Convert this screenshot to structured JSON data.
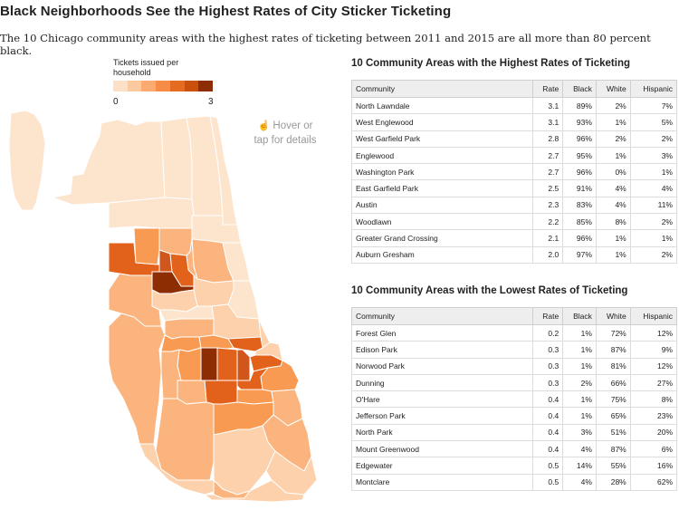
{
  "header": {
    "title": "Black Neighborhoods See the Highest Rates of City Sticker Ticketing",
    "subtitle": "The 10 Chicago community areas with the highest rates of ticketing between 2011 and 2015 are all more than 80 percent black."
  },
  "legend": {
    "title": "Tickets issued per household",
    "min_label": "0",
    "max_label": "3",
    "colors": [
      "#fde0c5",
      "#fdc99f",
      "#fcab70",
      "#f68c45",
      "#e56b21",
      "#c9500d",
      "#8c2d04"
    ]
  },
  "map": {
    "hint_line1": "Hover or",
    "hint_line2": "tap for details",
    "hint_icon": "pointer-hand-icon",
    "colors": {
      "lightest": "#fde4cd",
      "light": "#fdd1ab",
      "mid": "#fcb47e",
      "midstrong": "#f99a53",
      "strong": "#e2621c",
      "stronger": "#d0561b",
      "darkest": "#8c2d04"
    }
  },
  "tables": {
    "columns": [
      "Community",
      "Rate",
      "Black",
      "White",
      "Hispanic"
    ],
    "high": {
      "title": "10 Community Areas with the Highest Rates of Ticketing",
      "rows": [
        {
          "community": "North Lawndale",
          "rate": "3.1",
          "black": "89%",
          "white": "2%",
          "hispanic": "7%"
        },
        {
          "community": "West Englewood",
          "rate": "3.1",
          "black": "93%",
          "white": "1%",
          "hispanic": "5%"
        },
        {
          "community": "West Garfield Park",
          "rate": "2.8",
          "black": "96%",
          "white": "2%",
          "hispanic": "2%"
        },
        {
          "community": "Englewood",
          "rate": "2.7",
          "black": "95%",
          "white": "1%",
          "hispanic": "3%"
        },
        {
          "community": "Washington Park",
          "rate": "2.7",
          "black": "96%",
          "white": "0%",
          "hispanic": "1%"
        },
        {
          "community": "East Garfield Park",
          "rate": "2.5",
          "black": "91%",
          "white": "4%",
          "hispanic": "4%"
        },
        {
          "community": "Austin",
          "rate": "2.3",
          "black": "83%",
          "white": "4%",
          "hispanic": "11%"
        },
        {
          "community": "Woodlawn",
          "rate": "2.2",
          "black": "85%",
          "white": "8%",
          "hispanic": "2%"
        },
        {
          "community": "Greater Grand Crossing",
          "rate": "2.1",
          "black": "96%",
          "white": "1%",
          "hispanic": "1%"
        },
        {
          "community": "Auburn Gresham",
          "rate": "2.0",
          "black": "97%",
          "white": "1%",
          "hispanic": "2%"
        }
      ]
    },
    "low": {
      "title": "10 Community Areas with the Lowest Rates of Ticketing",
      "rows": [
        {
          "community": "Forest Glen",
          "rate": "0.2",
          "black": "1%",
          "white": "72%",
          "hispanic": "12%"
        },
        {
          "community": "Edison Park",
          "rate": "0.3",
          "black": "1%",
          "white": "87%",
          "hispanic": "9%"
        },
        {
          "community": "Norwood Park",
          "rate": "0.3",
          "black": "1%",
          "white": "81%",
          "hispanic": "12%"
        },
        {
          "community": "Dunning",
          "rate": "0.3",
          "black": "2%",
          "white": "66%",
          "hispanic": "27%"
        },
        {
          "community": "O'Hare",
          "rate": "0.4",
          "black": "1%",
          "white": "75%",
          "hispanic": "8%"
        },
        {
          "community": "Jefferson Park",
          "rate": "0.4",
          "black": "1%",
          "white": "65%",
          "hispanic": "23%"
        },
        {
          "community": "North Park",
          "rate": "0.4",
          "black": "3%",
          "white": "51%",
          "hispanic": "20%"
        },
        {
          "community": "Mount Greenwood",
          "rate": "0.4",
          "black": "4%",
          "white": "87%",
          "hispanic": "6%"
        },
        {
          "community": "Edgewater",
          "rate": "0.5",
          "black": "14%",
          "white": "55%",
          "hispanic": "16%"
        },
        {
          "community": "Montclare",
          "rate": "0.5",
          "black": "4%",
          "white": "28%",
          "hispanic": "62%"
        }
      ]
    }
  },
  "chart_data": [
    {
      "type": "table",
      "title": "10 Community Areas with the Highest Rates of Ticketing",
      "columns": [
        "Community",
        "Rate",
        "Black",
        "White",
        "Hispanic"
      ],
      "rows": [
        [
          "North Lawndale",
          3.1,
          "89%",
          "2%",
          "7%"
        ],
        [
          "West Englewood",
          3.1,
          "93%",
          "1%",
          "5%"
        ],
        [
          "West Garfield Park",
          2.8,
          "96%",
          "2%",
          "2%"
        ],
        [
          "Englewood",
          2.7,
          "95%",
          "1%",
          "3%"
        ],
        [
          "Washington Park",
          2.7,
          "96%",
          "0%",
          "1%"
        ],
        [
          "East Garfield Park",
          2.5,
          "91%",
          "4%",
          "4%"
        ],
        [
          "Austin",
          2.3,
          "83%",
          "4%",
          "11%"
        ],
        [
          "Woodlawn",
          2.2,
          "85%",
          "8%",
          "2%"
        ],
        [
          "Greater Grand Crossing",
          2.1,
          "96%",
          "1%",
          "1%"
        ],
        [
          "Auburn Gresham",
          2.0,
          "97%",
          "1%",
          "2%"
        ]
      ]
    },
    {
      "type": "table",
      "title": "10 Community Areas with the Lowest Rates of Ticketing",
      "columns": [
        "Community",
        "Rate",
        "Black",
        "White",
        "Hispanic"
      ],
      "rows": [
        [
          "Forest Glen",
          0.2,
          "1%",
          "72%",
          "12%"
        ],
        [
          "Edison Park",
          0.3,
          "1%",
          "87%",
          "9%"
        ],
        [
          "Norwood Park",
          0.3,
          "1%",
          "81%",
          "12%"
        ],
        [
          "Dunning",
          0.3,
          "2%",
          "66%",
          "27%"
        ],
        [
          "O'Hare",
          0.4,
          "1%",
          "75%",
          "8%"
        ],
        [
          "Jefferson Park",
          0.4,
          "1%",
          "65%",
          "23%"
        ],
        [
          "North Park",
          0.4,
          "3%",
          "51%",
          "20%"
        ],
        [
          "Mount Greenwood",
          0.4,
          "4%",
          "87%",
          "6%"
        ],
        [
          "Edgewater",
          0.5,
          "14%",
          "55%",
          "16%"
        ],
        [
          "Montclare",
          0.5,
          "4%",
          "28%",
          "62%"
        ]
      ]
    }
  ]
}
